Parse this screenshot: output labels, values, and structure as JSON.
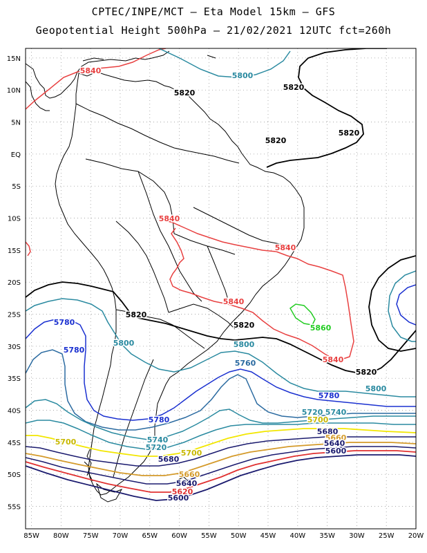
{
  "header": {
    "line1": "CPTEC/INPE/MCT —  Eta Model 15km — GFS",
    "line2": "Geopotential Height 500hPa — 21/02/2021 12UTC fct=260h"
  },
  "map": {
    "lat_labels": [
      "15N",
      "10N",
      "5N",
      "EQ",
      "5S",
      "10S",
      "15S",
      "20S",
      "25S",
      "30S",
      "35S",
      "40S",
      "45S",
      "50S",
      "55S"
    ],
    "lon_labels": [
      "85W",
      "80W",
      "75W",
      "70W",
      "65W",
      "60W",
      "55W",
      "50W",
      "45W",
      "40W",
      "35W",
      "30W",
      "25W",
      "20W"
    ],
    "grid": "dotted",
    "contour_colors": {
      "5600": "#1a1a6e",
      "5620": "#e03030",
      "5640": "#1a1a6e",
      "5660": "#d49a2a",
      "5680": "#1a1a6e",
      "5700": "#f2e600",
      "5720": "#2a8aa0",
      "5740": "#2a8aa0",
      "5760": "#2a6aa0",
      "5780": "#1a30d0",
      "5800": "#2a8aa0",
      "5820": "#000000",
      "5840": "#e84040",
      "5860": "#22cc22"
    },
    "contour_labels": [
      {
        "text": "5840",
        "color": "#e84040"
      },
      {
        "text": "5800",
        "color": "#2a8aa0"
      },
      {
        "text": "5820",
        "color": "#000000"
      },
      {
        "text": "5820",
        "color": "#000000"
      },
      {
        "text": "5820",
        "color": "#000000"
      },
      {
        "text": "5820",
        "color": "#000000"
      },
      {
        "text": "5840",
        "color": "#e84040"
      },
      {
        "text": "5840",
        "color": "#e84040"
      },
      {
        "text": "5840",
        "color": "#e84040"
      },
      {
        "text": "5820",
        "color": "#000000"
      },
      {
        "text": "5820",
        "color": "#000000"
      },
      {
        "text": "5780",
        "color": "#1a30d0"
      },
      {
        "text": "5780",
        "color": "#1a30d0"
      },
      {
        "text": "5800",
        "color": "#2a8aa0"
      },
      {
        "text": "5800",
        "color": "#2a8aa0"
      },
      {
        "text": "5760",
        "color": "#2a6aa0"
      },
      {
        "text": "5860",
        "color": "#22cc22"
      },
      {
        "text": "5840",
        "color": "#e84040"
      },
      {
        "text": "5820",
        "color": "#000000"
      },
      {
        "text": "5800",
        "color": "#2a8aa0"
      },
      {
        "text": "5780",
        "color": "#1a30d0"
      },
      {
        "text": "5720",
        "color": "#2a8aa0"
      },
      {
        "text": "5740",
        "color": "#2a8aa0"
      },
      {
        "text": "5700",
        "color": "#c8b800"
      },
      {
        "text": "5780",
        "color": "#1a30d0"
      },
      {
        "text": "5740",
        "color": "#2a8aa0"
      },
      {
        "text": "5720",
        "color": "#2a8aa0"
      },
      {
        "text": "5700",
        "color": "#c8b800"
      },
      {
        "text": "5700",
        "color": "#c8b800"
      },
      {
        "text": "5680",
        "color": "#1a1a6e"
      },
      {
        "text": "5680",
        "color": "#1a1a6e"
      },
      {
        "text": "5660",
        "color": "#d49a2a"
      },
      {
        "text": "5640",
        "color": "#1a1a6e"
      },
      {
        "text": "5600",
        "color": "#1a1a6e"
      },
      {
        "text": "5660",
        "color": "#d49a2a"
      },
      {
        "text": "5640",
        "color": "#1a1a6e"
      },
      {
        "text": "5620",
        "color": "#e03030"
      },
      {
        "text": "5600",
        "color": "#1a1a6e"
      }
    ]
  }
}
